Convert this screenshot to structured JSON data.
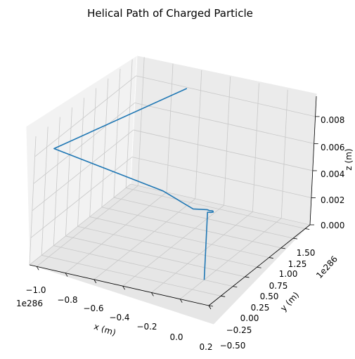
{
  "chart_data": {
    "type": "line",
    "projection": "3d",
    "title": "Helical Path of Charged Particle",
    "xlabel": "x (m)",
    "ylabel": "y (m)",
    "zlabel": "z (m)",
    "x_offset_label": "1e286",
    "y_offset_label": "1e286",
    "xlim": [
      -1.05,
      0.2
    ],
    "ylim": [
      -0.5,
      1.6
    ],
    "zlim": [
      0.0,
      0.0095
    ],
    "x_ticks": [
      "−1.0",
      "−0.8",
      "−0.6",
      "−0.4",
      "−0.2",
      "0.0",
      "0.2"
    ],
    "y_ticks": [
      "−0.50",
      "−0.25",
      "0.00",
      "0.25",
      "0.50",
      "0.75",
      "1.00",
      "1.25",
      "1.50"
    ],
    "z_ticks": [
      "0.000",
      "0.002",
      "0.004",
      "0.006",
      "0.008"
    ],
    "grid": true,
    "series": [
      {
        "color": "#1f77b4",
        "points": [
          {
            "x": 0.0,
            "y": 0.0,
            "z": 0.0
          },
          {
            "x": 0.0,
            "y": 0.0,
            "z": 0.005
          },
          {
            "x": 0.02,
            "y": 0.01,
            "z": 0.005
          },
          {
            "x": 0.03,
            "y": 0.03,
            "z": 0.005
          },
          {
            "x": 0.02,
            "y": 0.05,
            "z": 0.005
          },
          {
            "x": 0.0,
            "y": 0.04,
            "z": 0.005
          },
          {
            "x": -0.02,
            "y": 0.05,
            "z": 0.005
          },
          {
            "x": -0.1,
            "y": 0.0,
            "z": 0.005
          },
          {
            "x": -0.3,
            "y": -0.05,
            "z": 0.006
          },
          {
            "x": -1.0,
            "y": -0.25,
            "z": 0.008
          },
          {
            "x": -0.6,
            "y": 1.3,
            "z": 0.009
          }
        ]
      }
    ]
  }
}
